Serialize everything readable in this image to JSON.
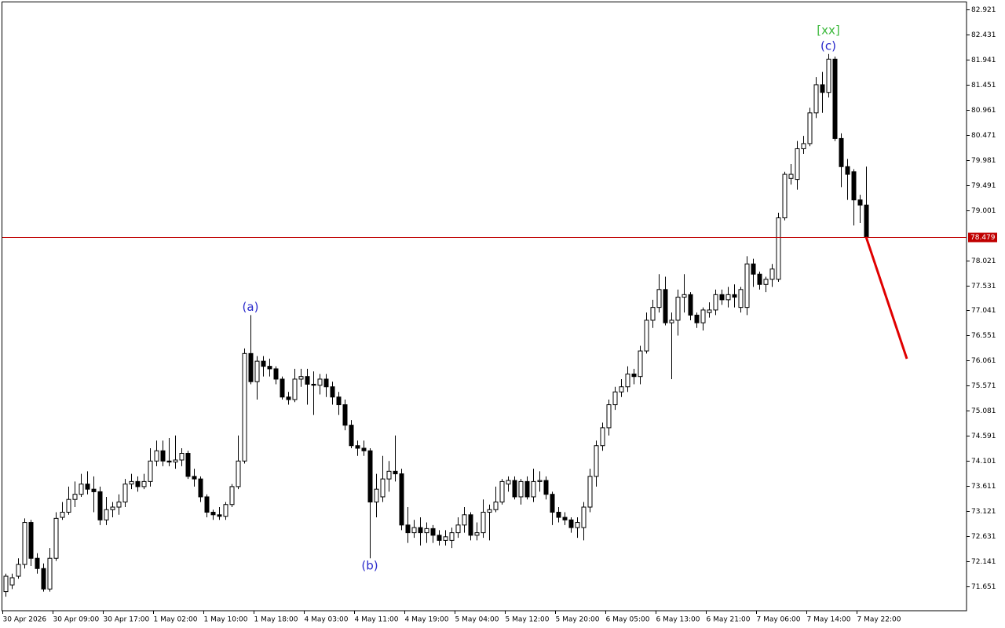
{
  "chart_data": {
    "type": "candlestick",
    "categories": [
      "30 Apr 2026",
      null,
      null,
      null,
      null,
      null,
      null,
      null,
      "30 Apr 09:00",
      null,
      null,
      null,
      null,
      null,
      null,
      null,
      "30 Apr 17:00",
      null,
      null,
      null,
      null,
      null,
      null,
      null,
      "1 May 02:00",
      null,
      null,
      null,
      null,
      null,
      null,
      null,
      "1 May 10:00",
      null,
      null,
      null,
      null,
      null,
      null,
      null,
      "1 May 18:00",
      null,
      null,
      null,
      null,
      null,
      null,
      null,
      "4 May 03:00",
      null,
      null,
      null,
      null,
      null,
      null,
      null,
      "4 May 11:00",
      null,
      null,
      null,
      null,
      null,
      null,
      null,
      "4 May 19:00",
      null,
      null,
      null,
      null,
      null,
      null,
      null,
      "5 May 04:00",
      null,
      null,
      null,
      null,
      null,
      null,
      null,
      "5 May 12:00",
      null,
      null,
      null,
      null,
      null,
      null,
      null,
      "5 May 20:00",
      null,
      null,
      null,
      null,
      null,
      null,
      null,
      "6 May 05:00",
      null,
      null,
      null,
      null,
      null,
      null,
      null,
      "6 May 13:00",
      null,
      null,
      null,
      null,
      null,
      null,
      null,
      "6 May 21:00",
      null,
      null,
      null,
      null,
      null,
      null,
      null,
      "7 May 06:00",
      null,
      null,
      null,
      null,
      null,
      null,
      null,
      "7 May 14:00",
      null,
      null,
      null,
      null,
      null,
      null,
      null,
      "7 May 22:00",
      null
    ],
    "open": [
      71.55,
      71.68,
      71.85,
      72.08,
      72.9,
      72.2,
      72.0,
      71.6,
      72.2,
      73.0,
      73.1,
      73.35,
      73.45,
      73.65,
      73.55,
      73.5,
      72.95,
      73.15,
      73.2,
      73.3,
      73.65,
      73.7,
      73.6,
      73.7,
      74.1,
      74.3,
      74.1,
      74.08,
      74.12,
      74.25,
      73.8,
      73.75,
      73.4,
      73.1,
      73.05,
      73.02,
      73.25,
      73.6,
      74.1,
      76.2,
      75.65,
      76.05,
      75.95,
      75.9,
      75.7,
      75.35,
      75.3,
      75.7,
      75.75,
      75.6,
      75.58,
      75.7,
      75.55,
      75.35,
      75.2,
      74.8,
      74.4,
      74.35,
      74.3,
      73.3,
      73.4,
      73.75,
      73.9,
      73.85,
      72.85,
      72.7,
      72.8,
      72.7,
      72.78,
      72.65,
      72.55,
      72.55,
      72.7,
      72.85,
      73.05,
      72.65,
      72.7,
      73.1,
      73.15,
      73.3,
      73.65,
      73.72,
      73.4,
      73.7,
      73.4,
      73.7,
      73.72,
      73.45,
      73.1,
      73.0,
      72.95,
      72.8,
      72.8,
      73.2,
      73.8,
      74.4,
      74.75,
      75.2,
      75.45,
      75.55,
      75.8,
      75.75,
      76.25,
      76.85,
      77.1,
      77.45,
      76.8,
      76.85,
      77.3,
      77.35,
      76.95,
      76.8,
      77.0,
      77.05,
      77.35,
      77.25,
      77.35,
      77.1,
      77.1,
      77.95,
      77.75,
      77.55,
      77.65,
      77.65,
      78.85,
      79.62,
      79.6,
      80.2,
      80.3,
      80.9,
      81.45,
      81.3,
      81.95,
      80.4,
      79.85,
      79.75,
      79.2,
      79.1
    ],
    "high": [
      71.9,
      71.9,
      72.2,
      72.98,
      72.95,
      72.3,
      72.1,
      72.4,
      73.1,
      73.3,
      73.6,
      73.7,
      73.85,
      73.9,
      73.8,
      73.6,
      73.4,
      73.3,
      73.45,
      73.75,
      73.85,
      73.8,
      73.85,
      74.35,
      74.5,
      74.5,
      74.55,
      74.6,
      74.35,
      74.3,
      73.95,
      73.8,
      73.45,
      73.15,
      73.2,
      73.3,
      73.65,
      74.6,
      76.3,
      76.95,
      76.15,
      76.15,
      76.1,
      75.95,
      75.75,
      75.45,
      75.9,
      75.9,
      75.9,
      75.85,
      75.8,
      75.8,
      75.65,
      75.45,
      75.3,
      74.9,
      74.5,
      74.5,
      74.35,
      73.85,
      74.2,
      74.1,
      74.6,
      73.95,
      73.2,
      72.95,
      73.0,
      72.9,
      72.85,
      72.75,
      72.75,
      72.8,
      73.0,
      73.2,
      73.1,
      72.9,
      73.35,
      73.25,
      73.6,
      73.75,
      73.8,
      73.8,
      73.75,
      73.8,
      73.95,
      73.9,
      73.8,
      73.5,
      73.2,
      73.1,
      73.0,
      73.0,
      73.3,
      73.95,
      74.5,
      74.85,
      75.3,
      75.55,
      75.7,
      75.95,
      75.9,
      76.35,
      77.0,
      77.25,
      77.75,
      77.7,
      77.0,
      77.45,
      77.75,
      77.4,
      77.0,
      77.1,
      77.2,
      77.45,
      77.45,
      77.5,
      77.55,
      77.5,
      78.1,
      78.05,
      77.8,
      77.7,
      77.95,
      78.95,
      79.75,
      79.9,
      80.35,
      80.45,
      81.0,
      81.6,
      81.7,
      82.05,
      82.0,
      80.5,
      80.0,
      79.8,
      79.3,
      79.85
    ],
    "low": [
      71.45,
      71.6,
      71.8,
      72.0,
      72.05,
      71.9,
      71.55,
      71.55,
      72.15,
      72.95,
      73.05,
      73.2,
      73.4,
      73.45,
      73.1,
      72.85,
      72.85,
      73.0,
      73.05,
      73.2,
      73.55,
      73.5,
      73.55,
      73.6,
      74.0,
      74.0,
      74.0,
      73.95,
      74.0,
      73.75,
      73.6,
      73.3,
      73.0,
      72.95,
      72.95,
      72.95,
      73.2,
      73.55,
      74.05,
      75.6,
      75.3,
      75.75,
      75.75,
      75.6,
      75.3,
      75.2,
      75.25,
      75.55,
      75.2,
      75.0,
      75.4,
      75.35,
      75.2,
      75.0,
      74.7,
      74.35,
      74.2,
      74.2,
      72.2,
      73.0,
      73.3,
      73.5,
      73.7,
      72.75,
      72.5,
      72.6,
      72.45,
      72.5,
      72.5,
      72.45,
      72.45,
      72.4,
      72.6,
      72.7,
      72.55,
      72.55,
      72.6,
      72.55,
      73.1,
      73.25,
      73.5,
      73.35,
      73.25,
      73.35,
      73.3,
      73.5,
      73.35,
      72.85,
      72.9,
      72.85,
      72.7,
      72.6,
      72.55,
      73.1,
      73.6,
      74.3,
      74.6,
      75.1,
      75.35,
      75.45,
      75.6,
      75.6,
      76.2,
      76.7,
      77.0,
      76.75,
      75.7,
      76.55,
      77.0,
      76.85,
      76.7,
      76.65,
      76.9,
      76.95,
      77.15,
      77.1,
      77.1,
      77.0,
      76.95,
      77.5,
      77.45,
      77.4,
      77.5,
      77.6,
      78.8,
      79.5,
      79.4,
      80.1,
      80.25,
      80.8,
      80.9,
      81.2,
      80.35,
      79.45,
      79.2,
      78.7,
      78.75,
      78.479
    ],
    "close": [
      71.85,
      71.82,
      72.08,
      72.9,
      72.2,
      72.0,
      71.6,
      72.2,
      72.98,
      73.1,
      73.35,
      73.45,
      73.65,
      73.55,
      73.5,
      72.95,
      73.15,
      73.2,
      73.3,
      73.65,
      73.7,
      73.6,
      73.7,
      74.1,
      74.3,
      74.1,
      74.08,
      74.12,
      74.25,
      73.8,
      73.75,
      73.4,
      73.1,
      73.05,
      73.02,
      73.25,
      73.6,
      74.1,
      76.2,
      75.65,
      76.05,
      75.95,
      75.9,
      75.7,
      75.35,
      75.3,
      75.7,
      75.75,
      75.6,
      75.58,
      75.7,
      75.55,
      75.35,
      75.2,
      74.8,
      74.4,
      74.35,
      74.3,
      73.3,
      73.55,
      73.75,
      73.9,
      73.85,
      72.85,
      72.7,
      72.8,
      72.7,
      72.78,
      72.65,
      72.55,
      72.62,
      72.7,
      72.85,
      73.05,
      72.65,
      72.7,
      73.1,
      73.15,
      73.3,
      73.7,
      73.72,
      73.4,
      73.7,
      73.4,
      73.7,
      73.72,
      73.45,
      73.1,
      73.0,
      72.95,
      72.8,
      72.9,
      73.2,
      73.8,
      74.4,
      74.75,
      75.2,
      75.45,
      75.55,
      75.8,
      75.75,
      76.25,
      76.85,
      77.1,
      77.45,
      76.8,
      76.85,
      77.3,
      77.35,
      76.95,
      76.8,
      77.05,
      77.05,
      77.35,
      77.25,
      77.35,
      77.3,
      77.45,
      77.95,
      77.75,
      77.55,
      77.65,
      77.85,
      78.85,
      79.7,
      79.7,
      80.2,
      80.3,
      80.9,
      81.45,
      81.3,
      81.95,
      80.4,
      79.85,
      79.7,
      79.2,
      79.1,
      78.479
    ],
    "xlim": [
      -0.5,
      153
    ],
    "ylim": [
      71.176,
      83.059
    ],
    "yticks": [
      82.921,
      82.431,
      81.941,
      81.451,
      80.961,
      80.471,
      79.981,
      79.491,
      79.001,
      78.021,
      77.531,
      77.041,
      76.551,
      76.061,
      75.571,
      75.081,
      74.591,
      74.101,
      73.611,
      73.121,
      72.631,
      72.141,
      71.651
    ],
    "last_price": {
      "value": 78.479,
      "color": "#c00000"
    },
    "forecast": {
      "x": [
        137,
        143.5
      ],
      "y": [
        78.479,
        76.098
      ],
      "color": "#e00000"
    },
    "annotations": [
      {
        "text": "(a)",
        "index": 39,
        "position": "above",
        "color": "#2a2acb"
      },
      {
        "text": "(b)",
        "index": 58,
        "position": "below",
        "color": "#2a2acb"
      },
      {
        "text": "(c)",
        "index": 131,
        "position": "above",
        "color": "#2a2acb"
      },
      {
        "text": "[xx]",
        "index": 131,
        "position": "above",
        "color": "#3cb93c"
      }
    ]
  }
}
